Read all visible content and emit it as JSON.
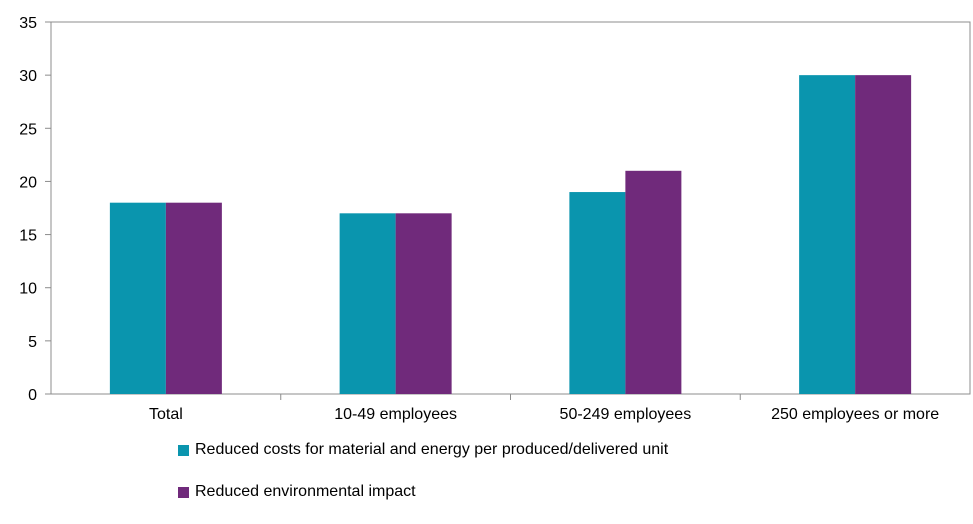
{
  "chart_data": {
    "type": "bar",
    "title": "",
    "xlabel": "",
    "ylabel": "",
    "ylim": [
      0,
      35
    ],
    "yticks": [
      0,
      5,
      10,
      15,
      20,
      25,
      30,
      35
    ],
    "grid": false,
    "legend_position": "bottom",
    "categories": [
      "Total",
      "10-49 employees",
      "50-249 employees",
      "250 employees or more"
    ],
    "series": [
      {
        "name": "Reduced costs for material and energy per produced/delivered unit",
        "color": "#0A95AE",
        "values": [
          18,
          17,
          19,
          30
        ]
      },
      {
        "name": "Reduced environmental impact",
        "color": "#702A7B",
        "values": [
          18,
          17,
          21,
          30
        ]
      }
    ]
  }
}
